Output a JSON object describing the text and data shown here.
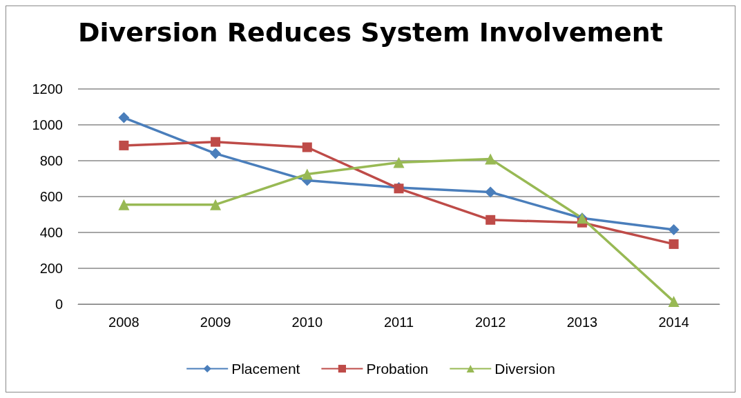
{
  "chart_data": {
    "type": "line",
    "title": "Diversion Reduces System Involvement",
    "categories": [
      "2008",
      "2009",
      "2010",
      "2011",
      "2012",
      "2013",
      "2014"
    ],
    "series": [
      {
        "name": "Placement",
        "color": "#4a7ebb",
        "marker": "diamond",
        "values": [
          1040,
          840,
          690,
          650,
          625,
          480,
          415
        ]
      },
      {
        "name": "Probation",
        "color": "#be4b48",
        "marker": "square",
        "values": [
          885,
          905,
          875,
          645,
          470,
          455,
          335
        ]
      },
      {
        "name": "Diversion",
        "color": "#98b954",
        "marker": "triangle",
        "values": [
          555,
          555,
          725,
          790,
          810,
          480,
          15
        ]
      }
    ],
    "ylim": [
      0,
      1200
    ],
    "yticks": [
      0,
      200,
      400,
      600,
      800,
      1000,
      1200
    ],
    "grid": "y",
    "legend": "bottom"
  }
}
